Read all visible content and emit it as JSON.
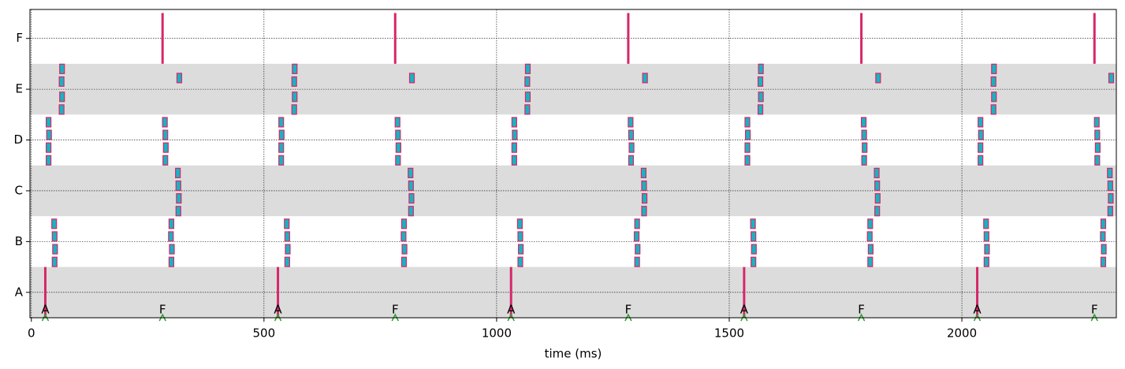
{
  "chart_data": {
    "type": "raster",
    "x_label": "time (ms)",
    "categories": [
      "A",
      "B",
      "C",
      "D",
      "E",
      "F"
    ],
    "band_color": "#dcdcdc",
    "grid": true,
    "xlim": [
      -3,
      2332
    ],
    "ylim": [
      -0.5,
      5.57
    ],
    "xticks": [
      0,
      500,
      1000,
      1500,
      2000
    ],
    "spikes": {
      "color": "#17b3c3",
      "edgecolor": "#d62768",
      "x": [
        50,
        51,
        50,
        49,
        301,
        302,
        300,
        301,
        37,
        37,
        38,
        37,
        288,
        289,
        288,
        287,
        316,
        317,
        316,
        315,
        65,
        66,
        65,
        66,
        318,
        550,
        551,
        550,
        549,
        801,
        802,
        800,
        801,
        537,
        537,
        538,
        537,
        788,
        789,
        788,
        787,
        816,
        817,
        816,
        815,
        565,
        566,
        565,
        566,
        818,
        1051,
        1052,
        1051,
        1050,
        1302,
        1303,
        1301,
        1302,
        1038,
        1038,
        1039,
        1038,
        1289,
        1290,
        1289,
        1288,
        1317,
        1318,
        1317,
        1316,
        1066,
        1067,
        1066,
        1067,
        1319,
        1552,
        1553,
        1552,
        1551,
        1803,
        1804,
        1802,
        1803,
        1539,
        1539,
        1540,
        1539,
        1790,
        1791,
        1790,
        1789,
        1818,
        1819,
        1818,
        1817,
        1567,
        1568,
        1567,
        1568,
        1820,
        2053,
        2054,
        2053,
        2052,
        2304,
        2305,
        2303,
        2304,
        2040,
        2040,
        2041,
        2040,
        2291,
        2292,
        2291,
        2290,
        2319,
        2320,
        2319,
        2318,
        2068,
        2069,
        2068,
        2069,
        2321
      ],
      "y": [
        0.6,
        0.85,
        1.1,
        1.35,
        0.6,
        0.85,
        1.1,
        1.35,
        2.6,
        2.85,
        3.1,
        3.35,
        2.6,
        2.85,
        3.1,
        3.35,
        1.6,
        1.85,
        2.1,
        2.35,
        3.6,
        3.85,
        4.15,
        4.4,
        4.22,
        0.6,
        0.85,
        1.1,
        1.35,
        0.6,
        0.85,
        1.1,
        1.35,
        2.6,
        2.85,
        3.1,
        3.35,
        2.6,
        2.85,
        3.1,
        3.35,
        1.6,
        1.85,
        2.1,
        2.35,
        3.6,
        3.85,
        4.15,
        4.4,
        4.22,
        0.6,
        0.85,
        1.1,
        1.35,
        0.6,
        0.85,
        1.1,
        1.35,
        2.6,
        2.85,
        3.1,
        3.35,
        2.6,
        2.85,
        3.1,
        3.35,
        1.6,
        1.85,
        2.1,
        2.35,
        3.6,
        3.85,
        4.15,
        4.4,
        4.22,
        0.6,
        0.85,
        1.1,
        1.35,
        0.6,
        0.85,
        1.1,
        1.35,
        2.6,
        2.85,
        3.1,
        3.35,
        2.6,
        2.85,
        3.1,
        3.35,
        1.6,
        1.85,
        2.1,
        2.35,
        3.6,
        3.85,
        4.15,
        4.4,
        4.22,
        0.6,
        0.85,
        1.1,
        1.35,
        0.6,
        0.85,
        1.1,
        1.35,
        2.6,
        2.85,
        3.1,
        3.35,
        2.6,
        2.85,
        3.1,
        3.35,
        1.6,
        1.85,
        2.1,
        2.35,
        3.6,
        3.85,
        4.15,
        4.4,
        4.22
      ]
    },
    "stimuli": {
      "color": "#d62768",
      "marker_color": "#2ca02c",
      "labels": [
        "A",
        "F",
        "A",
        "F",
        "A",
        "F",
        "A",
        "F",
        "A",
        "F"
      ],
      "x": [
        30,
        282,
        530,
        782,
        1031,
        1283,
        1532,
        1784,
        2033,
        2285
      ]
    }
  }
}
